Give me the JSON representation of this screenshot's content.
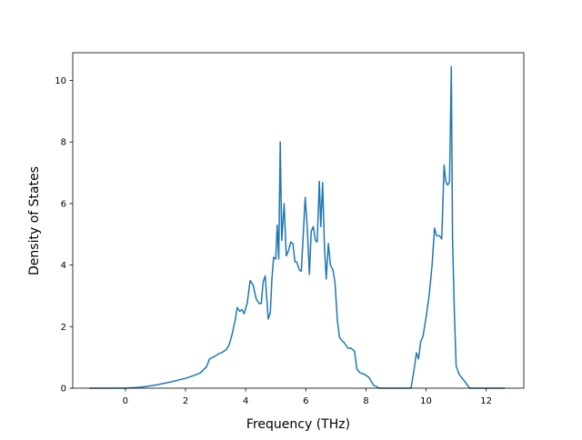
{
  "chart_data": {
    "type": "line",
    "title": "",
    "xlabel": "Frequency (THz)",
    "ylabel": "Density of States",
    "xlim": [
      -1.75,
      13.25
    ],
    "ylim": [
      0,
      10.9
    ],
    "xticks": [
      0,
      2,
      4,
      6,
      8,
      10,
      12
    ],
    "yticks": [
      0,
      2,
      4,
      6,
      8,
      10
    ],
    "grid": false,
    "legend": "none",
    "colors": {
      "line": "#1f77b4"
    },
    "series": [
      {
        "x": [
          -1.18,
          -0.5,
          0.0,
          0.5,
          1.0,
          1.5,
          2.0,
          2.3,
          2.5,
          2.7,
          2.8,
          3.0,
          3.1,
          3.2,
          3.35,
          3.45,
          3.55,
          3.65,
          3.72,
          3.8,
          3.88,
          3.95,
          4.05,
          4.15,
          4.25,
          4.35,
          4.45,
          4.52,
          4.58,
          4.65,
          4.75,
          4.82,
          4.87,
          4.93,
          5.0,
          5.05,
          5.1,
          5.15,
          5.2,
          5.28,
          5.35,
          5.42,
          5.5,
          5.57,
          5.64,
          5.7,
          5.78,
          5.85,
          5.9,
          5.98,
          6.05,
          6.12,
          6.18,
          6.25,
          6.32,
          6.38,
          6.45,
          6.5,
          6.56,
          6.62,
          6.68,
          6.75,
          6.82,
          6.9,
          6.97,
          7.05,
          7.12,
          7.2,
          7.3,
          7.4,
          7.5,
          7.62,
          7.7,
          7.8,
          7.95,
          8.1,
          8.25,
          8.45,
          8.6,
          9.0,
          9.5,
          9.6,
          9.68,
          9.75,
          9.82,
          9.9,
          10.0,
          10.1,
          10.2,
          10.28,
          10.35,
          10.45,
          10.52,
          10.6,
          10.66,
          10.72,
          10.78,
          10.84,
          10.88,
          10.94,
          11.0,
          11.1,
          11.3,
          11.45,
          11.6,
          12.0,
          12.5,
          12.6
        ],
        "y": [
          0.0,
          0.0,
          0.0,
          0.03,
          0.1,
          0.2,
          0.32,
          0.42,
          0.5,
          0.7,
          0.95,
          1.05,
          1.12,
          1.15,
          1.25,
          1.4,
          1.75,
          2.2,
          2.62,
          2.5,
          2.55,
          2.42,
          2.75,
          3.5,
          3.35,
          2.9,
          2.75,
          2.75,
          3.45,
          3.65,
          2.25,
          2.45,
          3.5,
          4.25,
          4.2,
          5.3,
          4.2,
          8.0,
          4.8,
          6.0,
          4.3,
          4.45,
          4.75,
          4.7,
          4.1,
          4.1,
          3.85,
          3.8,
          4.7,
          6.2,
          5.2,
          3.7,
          5.1,
          5.25,
          4.8,
          4.75,
          6.72,
          5.25,
          6.68,
          4.6,
          3.55,
          4.7,
          4.0,
          3.85,
          3.45,
          2.2,
          1.65,
          1.55,
          1.45,
          1.3,
          1.3,
          1.2,
          0.62,
          0.5,
          0.45,
          0.35,
          0.1,
          0.0,
          0.0,
          0.0,
          0.0,
          0.6,
          1.15,
          0.95,
          1.5,
          1.7,
          2.3,
          3.0,
          4.0,
          5.2,
          4.95,
          4.95,
          4.85,
          7.25,
          6.7,
          6.6,
          6.7,
          10.45,
          4.85,
          2.5,
          0.72,
          0.45,
          0.2,
          0.0,
          0.0,
          0.0,
          0.0,
          0.0
        ]
      }
    ]
  }
}
